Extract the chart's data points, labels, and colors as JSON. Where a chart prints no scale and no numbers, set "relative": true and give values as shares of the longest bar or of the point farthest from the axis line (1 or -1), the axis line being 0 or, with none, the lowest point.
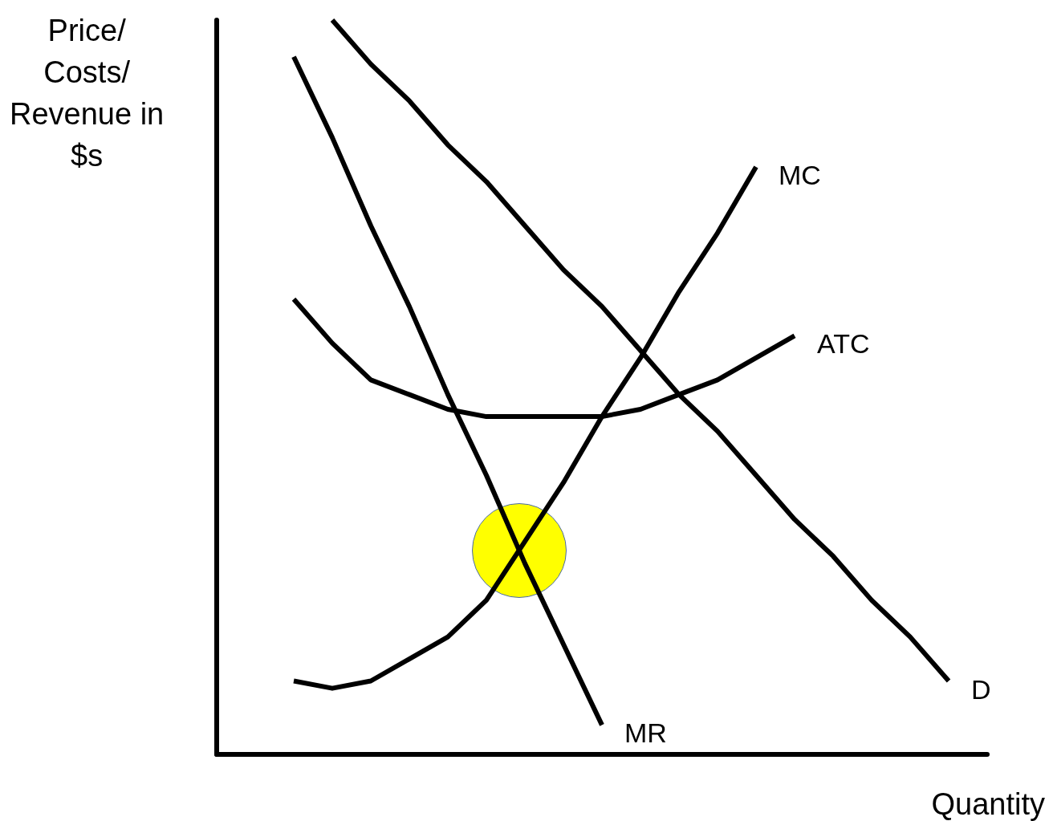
{
  "chart_data": {
    "type": "line",
    "relative": true,
    "ylabel": "Price/\nCosts/\nRevenue in\n$s",
    "xlabel": "Quantity",
    "marker": "none",
    "categories": [
      null,
      null,
      null,
      null,
      null,
      null,
      null,
      null,
      null,
      null,
      null,
      null,
      null,
      null,
      null,
      null,
      null,
      null,
      null,
      null,
      null
    ],
    "series": [
      {
        "name": "D",
        "color": "#000000",
        "values": [
          null,
          null,
          null,
          1.0,
          0.94,
          0.89,
          0.83,
          0.78,
          0.72,
          0.66,
          0.61,
          0.55,
          0.49,
          0.44,
          0.38,
          0.32,
          0.27,
          0.21,
          0.16,
          0.1,
          null
        ]
      },
      {
        "name": "MR",
        "color": "#000000",
        "values": [
          null,
          null,
          0.95,
          0.84,
          0.72,
          0.61,
          0.49,
          0.38,
          0.26,
          0.15,
          0.04,
          null,
          null,
          null,
          null,
          null,
          null,
          null,
          null,
          null,
          null
        ]
      },
      {
        "name": "MC",
        "color": "#000000",
        "values": [
          null,
          null,
          0.1,
          0.09,
          0.1,
          0.13,
          0.16,
          0.21,
          0.29,
          0.37,
          0.46,
          0.54,
          0.63,
          0.71,
          0.8,
          null,
          null,
          null,
          null,
          null,
          null
        ]
      },
      {
        "name": "ATC",
        "color": "#000000",
        "values": [
          null,
          null,
          0.62,
          0.56,
          0.51,
          0.49,
          0.47,
          0.46,
          0.46,
          0.46,
          0.46,
          0.47,
          0.49,
          0.51,
          0.54,
          0.57,
          null,
          null,
          null,
          null,
          null
        ]
      }
    ]
  }
}
